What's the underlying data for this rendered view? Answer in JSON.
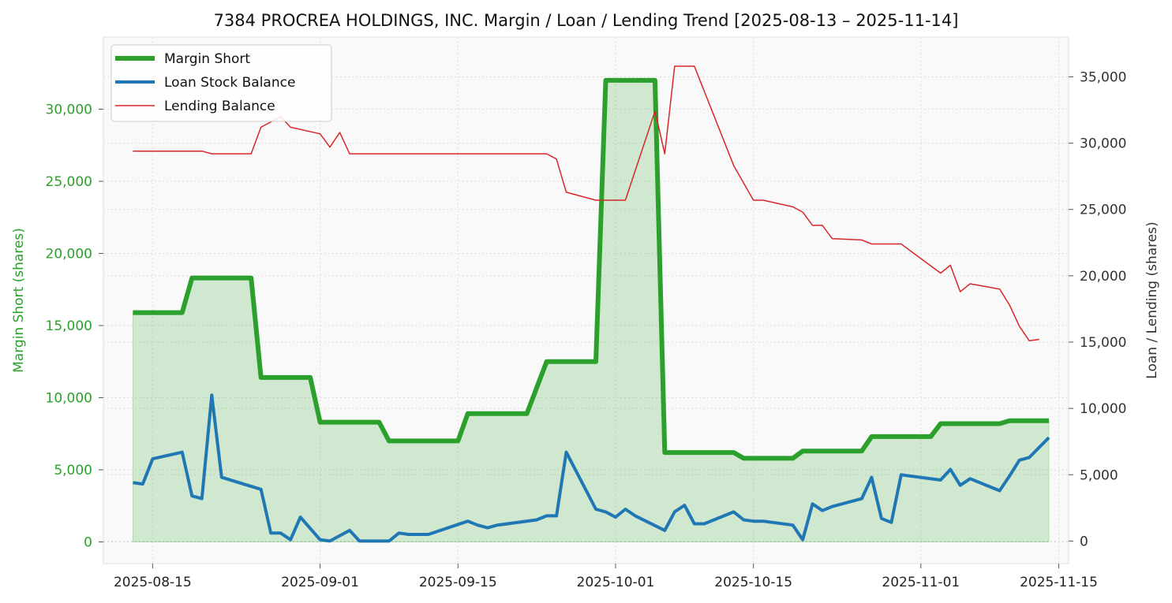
{
  "chart_data": {
    "type": "line",
    "title": "7384 PROCREA HOLDINGS, INC. Margin / Loan / Lending Trend [2025-08-13 – 2025-11-14]",
    "xlabel": "",
    "xlim": [
      "2025-08-10",
      "2025-11-16"
    ],
    "x_ticks": [
      "2025-08-15",
      "2025-09-01",
      "2025-09-15",
      "2025-10-01",
      "2025-10-15",
      "2025-11-01",
      "2025-11-15"
    ],
    "left_axis": {
      "label": "Margin Short (shares)",
      "ylim": [
        -1500,
        35000
      ],
      "ticks": [
        0,
        5000,
        10000,
        15000,
        20000,
        25000,
        30000
      ],
      "tick_labels": [
        "0",
        "5,000",
        "10,000",
        "15,000",
        "20,000",
        "25,000",
        "30,000"
      ],
      "color": "#2ca02c"
    },
    "right_axis": {
      "label": "Loan / Lending (shares)",
      "ylim": [
        -1700,
        38000
      ],
      "ticks": [
        0,
        5000,
        10000,
        15000,
        20000,
        25000,
        30000,
        35000
      ],
      "tick_labels": [
        "0",
        "5,000",
        "10,000",
        "15,000",
        "20,000",
        "25,000",
        "30,000",
        "35,000"
      ],
      "color": "#333333"
    },
    "grid": true,
    "legend_position": "top-left",
    "series": [
      {
        "name": "Margin Short",
        "axis": "left",
        "color": "#2ca02c",
        "fill": true,
        "points": [
          [
            "2025-08-13",
            15900
          ],
          [
            "2025-08-18",
            15900
          ],
          [
            "2025-08-19",
            18300
          ],
          [
            "2025-08-25",
            18300
          ],
          [
            "2025-08-26",
            11400
          ],
          [
            "2025-08-31",
            11400
          ],
          [
            "2025-09-01",
            8300
          ],
          [
            "2025-09-07",
            8300
          ],
          [
            "2025-09-08",
            7000
          ],
          [
            "2025-09-15",
            7000
          ],
          [
            "2025-09-16",
            8900
          ],
          [
            "2025-09-22",
            8900
          ],
          [
            "2025-09-24",
            12500
          ],
          [
            "2025-09-29",
            12500
          ],
          [
            "2025-09-30",
            32000
          ],
          [
            "2025-10-05",
            32000
          ],
          [
            "2025-10-06",
            6200
          ],
          [
            "2025-10-13",
            6200
          ],
          [
            "2025-10-14",
            5800
          ],
          [
            "2025-10-19",
            5800
          ],
          [
            "2025-10-20",
            6300
          ],
          [
            "2025-10-26",
            6300
          ],
          [
            "2025-10-27",
            7300
          ],
          [
            "2025-11-02",
            7300
          ],
          [
            "2025-11-03",
            8200
          ],
          [
            "2025-11-09",
            8200
          ],
          [
            "2025-11-10",
            8400
          ],
          [
            "2025-11-14",
            8400
          ]
        ]
      },
      {
        "name": "Loan Stock Balance",
        "axis": "right",
        "color": "#1f77b4",
        "points": [
          [
            "2025-08-13",
            4400
          ],
          [
            "2025-08-14",
            4300
          ],
          [
            "2025-08-15",
            6200
          ],
          [
            "2025-08-18",
            6700
          ],
          [
            "2025-08-19",
            3400
          ],
          [
            "2025-08-20",
            3200
          ],
          [
            "2025-08-21",
            11000
          ],
          [
            "2025-08-22",
            4800
          ],
          [
            "2025-08-26",
            3900
          ],
          [
            "2025-08-27",
            600
          ],
          [
            "2025-08-28",
            600
          ],
          [
            "2025-08-29",
            100
          ],
          [
            "2025-08-30",
            1800
          ],
          [
            "2025-09-01",
            100
          ],
          [
            "2025-09-02",
            0
          ],
          [
            "2025-09-04",
            800
          ],
          [
            "2025-09-05",
            0
          ],
          [
            "2025-09-08",
            0
          ],
          [
            "2025-09-09",
            600
          ],
          [
            "2025-09-10",
            500
          ],
          [
            "2025-09-12",
            500
          ],
          [
            "2025-09-16",
            1500
          ],
          [
            "2025-09-17",
            1200
          ],
          [
            "2025-09-18",
            1000
          ],
          [
            "2025-09-19",
            1200
          ],
          [
            "2025-09-23",
            1600
          ],
          [
            "2025-09-24",
            1900
          ],
          [
            "2025-09-25",
            1900
          ],
          [
            "2025-09-26",
            6700
          ],
          [
            "2025-09-29",
            2400
          ],
          [
            "2025-09-30",
            2200
          ],
          [
            "2025-10-01",
            1800
          ],
          [
            "2025-10-02",
            2400
          ],
          [
            "2025-10-03",
            1900
          ],
          [
            "2025-10-06",
            800
          ],
          [
            "2025-10-07",
            2200
          ],
          [
            "2025-10-08",
            2700
          ],
          [
            "2025-10-09",
            1300
          ],
          [
            "2025-10-10",
            1300
          ],
          [
            "2025-10-13",
            2200
          ],
          [
            "2025-10-14",
            1600
          ],
          [
            "2025-10-15",
            1500
          ],
          [
            "2025-10-16",
            1500
          ],
          [
            "2025-10-19",
            1200
          ],
          [
            "2025-10-20",
            100
          ],
          [
            "2025-10-21",
            2800
          ],
          [
            "2025-10-22",
            2300
          ],
          [
            "2025-10-23",
            2600
          ],
          [
            "2025-10-26",
            3200
          ],
          [
            "2025-10-27",
            4800
          ],
          [
            "2025-10-28",
            1700
          ],
          [
            "2025-10-29",
            1400
          ],
          [
            "2025-10-30",
            5000
          ],
          [
            "2025-11-03",
            4600
          ],
          [
            "2025-11-04",
            5400
          ],
          [
            "2025-11-05",
            4200
          ],
          [
            "2025-11-06",
            4700
          ],
          [
            "2025-11-09",
            3800
          ],
          [
            "2025-11-10",
            4900
          ],
          [
            "2025-11-11",
            6100
          ],
          [
            "2025-11-12",
            6300
          ],
          [
            "2025-11-14",
            7800
          ]
        ]
      },
      {
        "name": "Lending Balance",
        "axis": "right",
        "color": "#d62728",
        "points": [
          [
            "2025-08-13",
            29400
          ],
          [
            "2025-08-20",
            29400
          ],
          [
            "2025-08-21",
            29200
          ],
          [
            "2025-08-25",
            29200
          ],
          [
            "2025-08-26",
            31200
          ],
          [
            "2025-08-28",
            32000
          ],
          [
            "2025-08-29",
            31200
          ],
          [
            "2025-09-01",
            30700
          ],
          [
            "2025-09-02",
            29700
          ],
          [
            "2025-09-03",
            30800
          ],
          [
            "2025-09-04",
            29200
          ],
          [
            "2025-09-24",
            29200
          ],
          [
            "2025-09-25",
            28800
          ],
          [
            "2025-09-26",
            26300
          ],
          [
            "2025-09-29",
            25700
          ],
          [
            "2025-10-02",
            25700
          ],
          [
            "2025-10-05",
            32400
          ],
          [
            "2025-10-06",
            29200
          ],
          [
            "2025-10-07",
            35800
          ],
          [
            "2025-10-09",
            35800
          ],
          [
            "2025-10-13",
            28300
          ],
          [
            "2025-10-15",
            25700
          ],
          [
            "2025-10-16",
            25700
          ],
          [
            "2025-10-19",
            25200
          ],
          [
            "2025-10-20",
            24800
          ],
          [
            "2025-10-21",
            23800
          ],
          [
            "2025-10-22",
            23800
          ],
          [
            "2025-10-23",
            22800
          ],
          [
            "2025-10-26",
            22700
          ],
          [
            "2025-10-27",
            22400
          ],
          [
            "2025-10-30",
            22400
          ],
          [
            "2025-11-03",
            20200
          ],
          [
            "2025-11-04",
            20800
          ],
          [
            "2025-11-05",
            18800
          ],
          [
            "2025-11-06",
            19400
          ],
          [
            "2025-11-09",
            19000
          ],
          [
            "2025-11-10",
            17800
          ],
          [
            "2025-11-11",
            16200
          ],
          [
            "2025-11-12",
            15100
          ],
          [
            "2025-11-13",
            15200
          ]
        ]
      }
    ]
  }
}
